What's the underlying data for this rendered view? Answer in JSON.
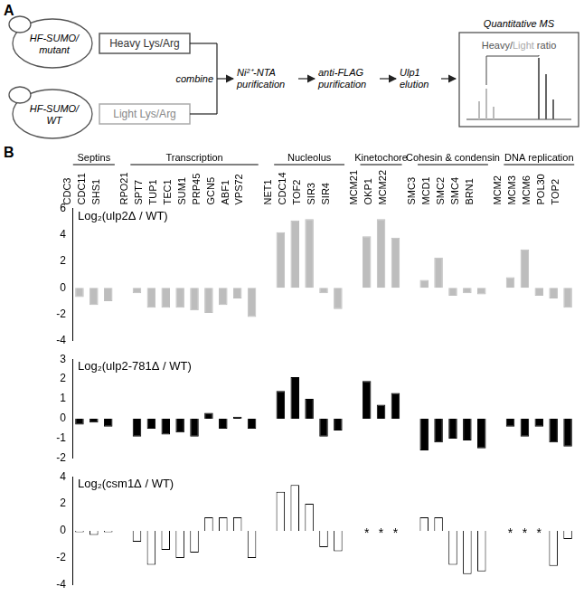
{
  "diagram": {
    "label": "A",
    "strains": [
      {
        "cell": [
          "HF-SUMO/",
          "mutant"
        ],
        "medium": "Heavy Lys/Arg"
      },
      {
        "cell": [
          "HF-SUMO/",
          "WT"
        ],
        "medium": "Light Lys/Arg"
      }
    ],
    "join": "combine",
    "steps": [
      [
        "Ni²⁺-NTA",
        "purification"
      ],
      [
        "anti-FLAG",
        "purification"
      ],
      [
        "Ulp1",
        "elution"
      ]
    ],
    "output": {
      "title": "Quantitative MS",
      "ratio_parts": [
        "Heavy",
        "/",
        "Light",
        " ratio"
      ]
    }
  },
  "panel_label": "B",
  "chart_data": [
    {
      "type": "bar",
      "title": "Log₂(ulp2Δ / WT)",
      "categories": [
        "CDC3",
        "CDC11",
        "SHS1",
        null,
        "RPO21",
        "SPT7",
        "TUP1",
        "TEC1",
        "SUM1",
        "PRP45",
        "GCN5",
        "ABF1",
        "VPS72",
        null,
        "NET1",
        "CDC14",
        "TOF2",
        "SIR3",
        "SIR4",
        null,
        "MCM21",
        "OKP1",
        "MCM22",
        null,
        "SMC3",
        "MCD1",
        "SMC2",
        "SMC4",
        "BRN1",
        null,
        "MCM2",
        "MCM3",
        "MCM6",
        "POL30",
        "TOP2"
      ],
      "values": [
        -0.7,
        -1.3,
        -1.0,
        null,
        -0.4,
        -1.5,
        -1.5,
        -1.5,
        -1.7,
        -1.9,
        -1.3,
        -0.8,
        -2.2,
        null,
        4.2,
        5.1,
        5.2,
        -0.4,
        -1.6,
        null,
        3.9,
        5.2,
        3.8,
        null,
        0.6,
        2.3,
        -0.6,
        -0.4,
        -0.5,
        null,
        0.8,
        2.9,
        -0.6,
        -0.8,
        -1.5
      ],
      "groups": [
        {
          "name": "Septins",
          "categories": [
            "CDC3",
            "CDC11",
            "SHS1"
          ]
        },
        {
          "name": "Transcription",
          "categories": [
            "RPO21",
            "SPT7",
            "TUP1",
            "TEC1",
            "SUM1",
            "PRP45",
            "GCN5",
            "ABF1",
            "VPS72"
          ]
        },
        {
          "name": "Nucleolus",
          "categories": [
            "NET1",
            "CDC14",
            "TOF2",
            "SIR3",
            "SIR4"
          ]
        },
        {
          "name": "Kinetochore",
          "categories": [
            "MCM21",
            "OKP1",
            "MCM22"
          ]
        },
        {
          "name": "Cohesin & condensin",
          "categories": [
            "SMC3",
            "MCD1",
            "SMC2",
            "SMC4",
            "BRN1"
          ]
        },
        {
          "name": "DNA replication",
          "categories": [
            "MCM2",
            "MCM3",
            "MCM6",
            "POL30",
            "TOP2"
          ]
        }
      ],
      "color": "#bdbdbd",
      "ylim": [
        -4,
        6
      ],
      "yticks": [
        -4,
        -2,
        0,
        2,
        4,
        6
      ],
      "grid": false
    },
    {
      "type": "bar",
      "title": "Log₂(ulp2-781Δ / WT)",
      "categories": [
        "CDC3",
        "CDC11",
        "SHS1",
        null,
        "RPO21",
        "SPT7",
        "TUP1",
        "TEC1",
        "SUM1",
        "PRP45",
        "GCN5",
        "ABF1",
        "VPS72",
        null,
        "NET1",
        "CDC14",
        "TOF2",
        "SIR3",
        "SIR4",
        null,
        "MCM21",
        "OKP1",
        "MCM22",
        null,
        "SMC3",
        "MCD1",
        "SMC2",
        "SMC4",
        "BRN1",
        null,
        "MCM2",
        "MCM3",
        "MCM6",
        "POL30",
        "TOP2"
      ],
      "values": [
        -0.3,
        -0.2,
        -0.4,
        null,
        -0.9,
        -0.5,
        -0.8,
        -0.7,
        -0.9,
        0.3,
        -0.5,
        0.1,
        -0.5,
        null,
        1.4,
        2.1,
        1.0,
        -0.9,
        -0.6,
        null,
        1.9,
        0.7,
        1.3,
        null,
        -1.6,
        -1.2,
        -1.0,
        -1.1,
        -1.5,
        null,
        -0.4,
        -0.9,
        -0.4,
        -1.2,
        -1.4
      ],
      "color": "#000000",
      "ylim": [
        -2,
        3
      ],
      "yticks": [
        -2,
        -1,
        0,
        1,
        2,
        3
      ],
      "grid": false,
      "tick_labels": "y"
    },
    {
      "type": "bar",
      "title": "Log₂(csm1Δ / WT)",
      "categories": [
        "CDC3",
        "CDC11",
        "SHS1",
        null,
        "RPO21",
        "SPT7",
        "TUP1",
        "TEC1",
        "SUM1",
        "PRP45",
        "GCN5",
        "ABF1",
        "VPS72",
        null,
        "NET1",
        "CDC14",
        "TOF2",
        "SIR3",
        "SIR4",
        null,
        "MCM21",
        "OKP1",
        "MCM22",
        null,
        "SMC3",
        "MCD1",
        "SMC2",
        "SMC4",
        "BRN1",
        null,
        "MCM2",
        "MCM3",
        "MCM6",
        "POL30",
        "TOP2"
      ],
      "values": [
        -0.1,
        -0.3,
        -0.1,
        null,
        -0.8,
        -2.5,
        -1.4,
        -2.0,
        -1.6,
        1.0,
        1.0,
        1.0,
        -2.0,
        null,
        2.9,
        3.4,
        2.0,
        -1.2,
        -1.5,
        null,
        null,
        null,
        null,
        null,
        1.0,
        1.0,
        -2.5,
        -3.2,
        -3.0,
        null,
        null,
        null,
        null,
        -2.6,
        -0.6
      ],
      "annotations": [
        {
          "category": "MCM21",
          "y": 0,
          "text": "*"
        },
        {
          "category": "OKP1",
          "y": 0,
          "text": "*"
        },
        {
          "category": "MCM22",
          "y": 0,
          "text": "*"
        },
        {
          "category": "MCM2",
          "y": 0,
          "text": "*"
        },
        {
          "category": "MCM3",
          "y": 0,
          "text": "*"
        },
        {
          "category": "MCM6",
          "y": 0,
          "text": "*"
        }
      ],
      "color": "#ffffff",
      "ylim": [
        -4,
        4
      ],
      "yticks": [
        -4,
        -2,
        0,
        2,
        4
      ],
      "grid": false,
      "tick_labels": "y"
    }
  ]
}
